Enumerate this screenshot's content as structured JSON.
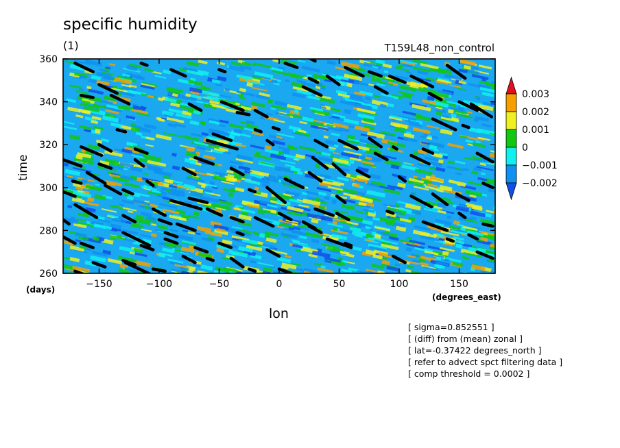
{
  "title": "specific humidity",
  "subtitle": "(1)",
  "run_label": "T159L48_non_control",
  "notes": [
    "[ sigma=0.852551 ]",
    "[ (diff) from (mean) zonal ]",
    "[ lat=-0.37422 degrees_north ]",
    "[ refer to advect spct filtering data ]",
    "[ comp threshold = 0.0002 ]"
  ],
  "chart_data": {
    "type": "heatmap",
    "title": "specific humidity",
    "xlabel": "lon",
    "xunit": "(degrees_east)",
    "ylabel": "time",
    "yunit": "(days)",
    "xlim": [
      -180,
      180
    ],
    "ylim": [
      260,
      360
    ],
    "xticks": [
      -150,
      -100,
      -50,
      0,
      50,
      100,
      150
    ],
    "yticks": [
      260,
      280,
      300,
      320,
      340,
      360
    ],
    "colorbar": {
      "labels": [
        "0.003",
        "0.002",
        "0.001",
        "0",
        "-0.001",
        "-0.002"
      ],
      "colors": [
        "#e01020",
        "#f5a000",
        "#f0f020",
        "#10c810",
        "#10f0f0",
        "#1090f0",
        "#1050e8"
      ]
    },
    "overlay": {
      "description_label": "comp threshold = 0.0002",
      "color": "#000000",
      "segments": [
        [
          [
            -170,
            358
          ],
          [
            -155,
            354
          ]
        ],
        [
          [
            -165,
            343
          ],
          [
            -155,
            342
          ]
        ],
        [
          [
            -150,
            348
          ],
          [
            -135,
            344
          ]
        ],
        [
          [
            -140,
            343
          ],
          [
            -125,
            339
          ]
        ],
        [
          [
            -115,
            358
          ],
          [
            -110,
            357
          ]
        ],
        [
          [
            -90,
            355
          ],
          [
            -78,
            352
          ]
        ],
        [
          [
            -75,
            339
          ],
          [
            -65,
            336
          ]
        ],
        [
          [
            -50,
            355
          ],
          [
            -45,
            354
          ]
        ],
        [
          [
            -48,
            340
          ],
          [
            -30,
            336
          ]
        ],
        [
          [
            -35,
            335
          ],
          [
            -25,
            334
          ]
        ],
        [
          [
            -20,
            336
          ],
          [
            -10,
            333
          ]
        ],
        [
          [
            -5,
            328
          ],
          [
            0,
            327
          ]
        ],
        [
          [
            5,
            358
          ],
          [
            15,
            356
          ]
        ],
        [
          [
            20,
            362
          ],
          [
            30,
            359
          ]
        ],
        [
          [
            25,
            351
          ],
          [
            32,
            349
          ]
        ],
        [
          [
            40,
            352
          ],
          [
            50,
            348
          ]
        ],
        [
          [
            20,
            347
          ],
          [
            35,
            343
          ]
        ],
        [
          [
            55,
            356
          ],
          [
            70,
            352
          ]
        ],
        [
          [
            75,
            354
          ],
          [
            85,
            352
          ]
        ],
        [
          [
            80,
            347
          ],
          [
            90,
            344
          ]
        ],
        [
          [
            92,
            352
          ],
          [
            105,
            349
          ]
        ],
        [
          [
            110,
            352
          ],
          [
            128,
            347
          ]
        ],
        [
          [
            140,
            357
          ],
          [
            155,
            351
          ]
        ],
        [
          [
            125,
            344
          ],
          [
            135,
            341
          ]
        ],
        [
          [
            150,
            340
          ],
          [
            165,
            336
          ]
        ],
        [
          [
            128,
            332
          ],
          [
            147,
            327
          ]
        ],
        [
          [
            153,
            329
          ],
          [
            158,
            328
          ]
        ],
        [
          [
            160,
            339
          ],
          [
            177,
            333
          ]
        ],
        [
          [
            -135,
            327
          ],
          [
            -128,
            326
          ]
        ],
        [
          [
            -150,
            320
          ],
          [
            -140,
            317
          ]
        ],
        [
          [
            -180,
            313
          ],
          [
            -165,
            310
          ]
        ],
        [
          [
            -165,
            319
          ],
          [
            -148,
            315
          ]
        ],
        [
          [
            -120,
            318
          ],
          [
            -110,
            316
          ]
        ],
        [
          [
            -60,
            322
          ],
          [
            -35,
            318
          ]
        ],
        [
          [
            -55,
            325
          ],
          [
            -40,
            322
          ]
        ],
        [
          [
            -10,
            322
          ],
          [
            -5,
            320
          ]
        ],
        [
          [
            -20,
            327
          ],
          [
            -15,
            326
          ]
        ],
        [
          [
            30,
            322
          ],
          [
            40,
            319
          ]
        ],
        [
          [
            50,
            322
          ],
          [
            65,
            318
          ]
        ],
        [
          [
            75,
            323
          ],
          [
            85,
            319
          ]
        ],
        [
          [
            80,
            316
          ],
          [
            90,
            313
          ]
        ],
        [
          [
            95,
            319
          ],
          [
            98,
            318
          ]
        ],
        [
          [
            28,
            314
          ],
          [
            40,
            309
          ]
        ],
        [
          [
            45,
            311
          ],
          [
            55,
            306
          ]
        ],
        [
          [
            65,
            308
          ],
          [
            75,
            305
          ]
        ],
        [
          [
            100,
            305
          ],
          [
            105,
            303
          ]
        ],
        [
          [
            110,
            315
          ],
          [
            125,
            311
          ]
        ],
        [
          [
            120,
            318
          ],
          [
            128,
            316
          ]
        ],
        [
          [
            165,
            316
          ],
          [
            178,
            312
          ]
        ],
        [
          [
            -172,
            303
          ],
          [
            -165,
            302
          ]
        ],
        [
          [
            -160,
            307
          ],
          [
            -145,
            302
          ]
        ],
        [
          [
            -150,
            311
          ],
          [
            -140,
            309
          ]
        ],
        [
          [
            -145,
            301
          ],
          [
            -132,
            297
          ]
        ],
        [
          [
            -130,
            299
          ],
          [
            -122,
            297
          ]
        ],
        [
          [
            -110,
            303
          ],
          [
            -105,
            301
          ]
        ],
        [
          [
            -120,
            313
          ],
          [
            -113,
            310
          ]
        ],
        [
          [
            -80,
            309
          ],
          [
            -70,
            306
          ]
        ],
        [
          [
            -70,
            314
          ],
          [
            -55,
            311
          ]
        ],
        [
          [
            -40,
            309
          ],
          [
            -30,
            306
          ]
        ],
        [
          [
            -25,
            299
          ],
          [
            -20,
            298
          ]
        ],
        [
          [
            -10,
            300
          ],
          [
            5,
            293
          ]
        ],
        [
          [
            5,
            304
          ],
          [
            20,
            300
          ]
        ],
        [
          [
            25,
            307
          ],
          [
            35,
            303
          ]
        ],
        [
          [
            30,
            290
          ],
          [
            45,
            287
          ]
        ],
        [
          [
            48,
            296
          ],
          [
            55,
            293
          ]
        ],
        [
          [
            110,
            296
          ],
          [
            127,
            291
          ]
        ],
        [
          [
            128,
            297
          ],
          [
            140,
            292
          ]
        ],
        [
          [
            148,
            297
          ],
          [
            158,
            294
          ]
        ],
        [
          [
            170,
            302
          ],
          [
            178,
            300
          ]
        ],
        [
          [
            -180,
            298
          ],
          [
            -170,
            296
          ]
        ],
        [
          [
            -170,
            292
          ],
          [
            -152,
            286
          ]
        ],
        [
          [
            -130,
            287
          ],
          [
            -120,
            284
          ]
        ],
        [
          [
            -105,
            290
          ],
          [
            -95,
            287
          ]
        ],
        [
          [
            -90,
            294
          ],
          [
            -65,
            290
          ]
        ],
        [
          [
            -75,
            295
          ],
          [
            -60,
            293
          ]
        ],
        [
          [
            -60,
            290
          ],
          [
            -48,
            287
          ]
        ],
        [
          [
            -40,
            286
          ],
          [
            -30,
            284
          ]
        ],
        [
          [
            -20,
            286
          ],
          [
            -5,
            282
          ]
        ],
        [
          [
            0,
            288
          ],
          [
            10,
            285
          ]
        ],
        [
          [
            20,
            284
          ],
          [
            30,
            281
          ]
        ],
        [
          [
            48,
            288
          ],
          [
            58,
            285
          ]
        ],
        [
          [
            90,
            289
          ],
          [
            95,
            288
          ]
        ],
        [
          [
            120,
            284
          ],
          [
            140,
            280
          ]
        ],
        [
          [
            150,
            288
          ],
          [
            155,
            286
          ]
        ],
        [
          [
            -180,
            285
          ],
          [
            -175,
            283
          ]
        ],
        [
          [
            -100,
            285
          ],
          [
            -90,
            283
          ]
        ],
        [
          [
            -85,
            283
          ],
          [
            -70,
            280
          ]
        ],
        [
          [
            -95,
            279
          ],
          [
            -85,
            277
          ]
        ],
        [
          [
            -130,
            279
          ],
          [
            -108,
            273
          ]
        ],
        [
          [
            -115,
            273
          ],
          [
            -105,
            271
          ]
        ],
        [
          [
            -180,
            277
          ],
          [
            -170,
            274
          ]
        ],
        [
          [
            -165,
            274
          ],
          [
            -155,
            272
          ]
        ],
        [
          [
            -130,
            266
          ],
          [
            -120,
            264
          ]
        ],
        [
          [
            -95,
            276
          ],
          [
            -85,
            274
          ]
        ],
        [
          [
            -70,
            272
          ],
          [
            -60,
            270
          ]
        ],
        [
          [
            -50,
            274
          ],
          [
            -40,
            272
          ]
        ],
        [
          [
            -40,
            267
          ],
          [
            -30,
            263
          ]
        ],
        [
          [
            -80,
            268
          ],
          [
            -70,
            265
          ]
        ],
        [
          [
            -60,
            267
          ],
          [
            -55,
            266
          ]
        ],
        [
          [
            -35,
            279
          ],
          [
            -30,
            278
          ]
        ],
        [
          [
            -25,
            262
          ],
          [
            -20,
            261
          ]
        ],
        [
          [
            0,
            262
          ],
          [
            10,
            260
          ]
        ],
        [
          [
            40,
            276
          ],
          [
            60,
            272
          ]
        ],
        [
          [
            55,
            274
          ],
          [
            60,
            273
          ]
        ],
        [
          [
            25,
            282
          ],
          [
            35,
            279
          ]
        ],
        [
          [
            -10,
            271
          ],
          [
            0,
            268
          ]
        ],
        [
          [
            140,
            276
          ],
          [
            145,
            275
          ]
        ],
        [
          [
            158,
            278
          ],
          [
            165,
            276
          ]
        ],
        [
          [
            170,
            283
          ],
          [
            178,
            282
          ]
        ],
        [
          [
            165,
            270
          ],
          [
            178,
            267
          ]
        ],
        [
          [
            95,
            268
          ],
          [
            105,
            265
          ]
        ],
        [
          [
            -155,
            265
          ],
          [
            -145,
            263
          ]
        ],
        [
          [
            -170,
            261
          ],
          [
            -160,
            259
          ]
        ],
        [
          [
            -128,
            265
          ],
          [
            -105,
            259
          ]
        ],
        [
          [
            -105,
            262
          ],
          [
            -95,
            261
          ]
        ]
      ]
    }
  }
}
